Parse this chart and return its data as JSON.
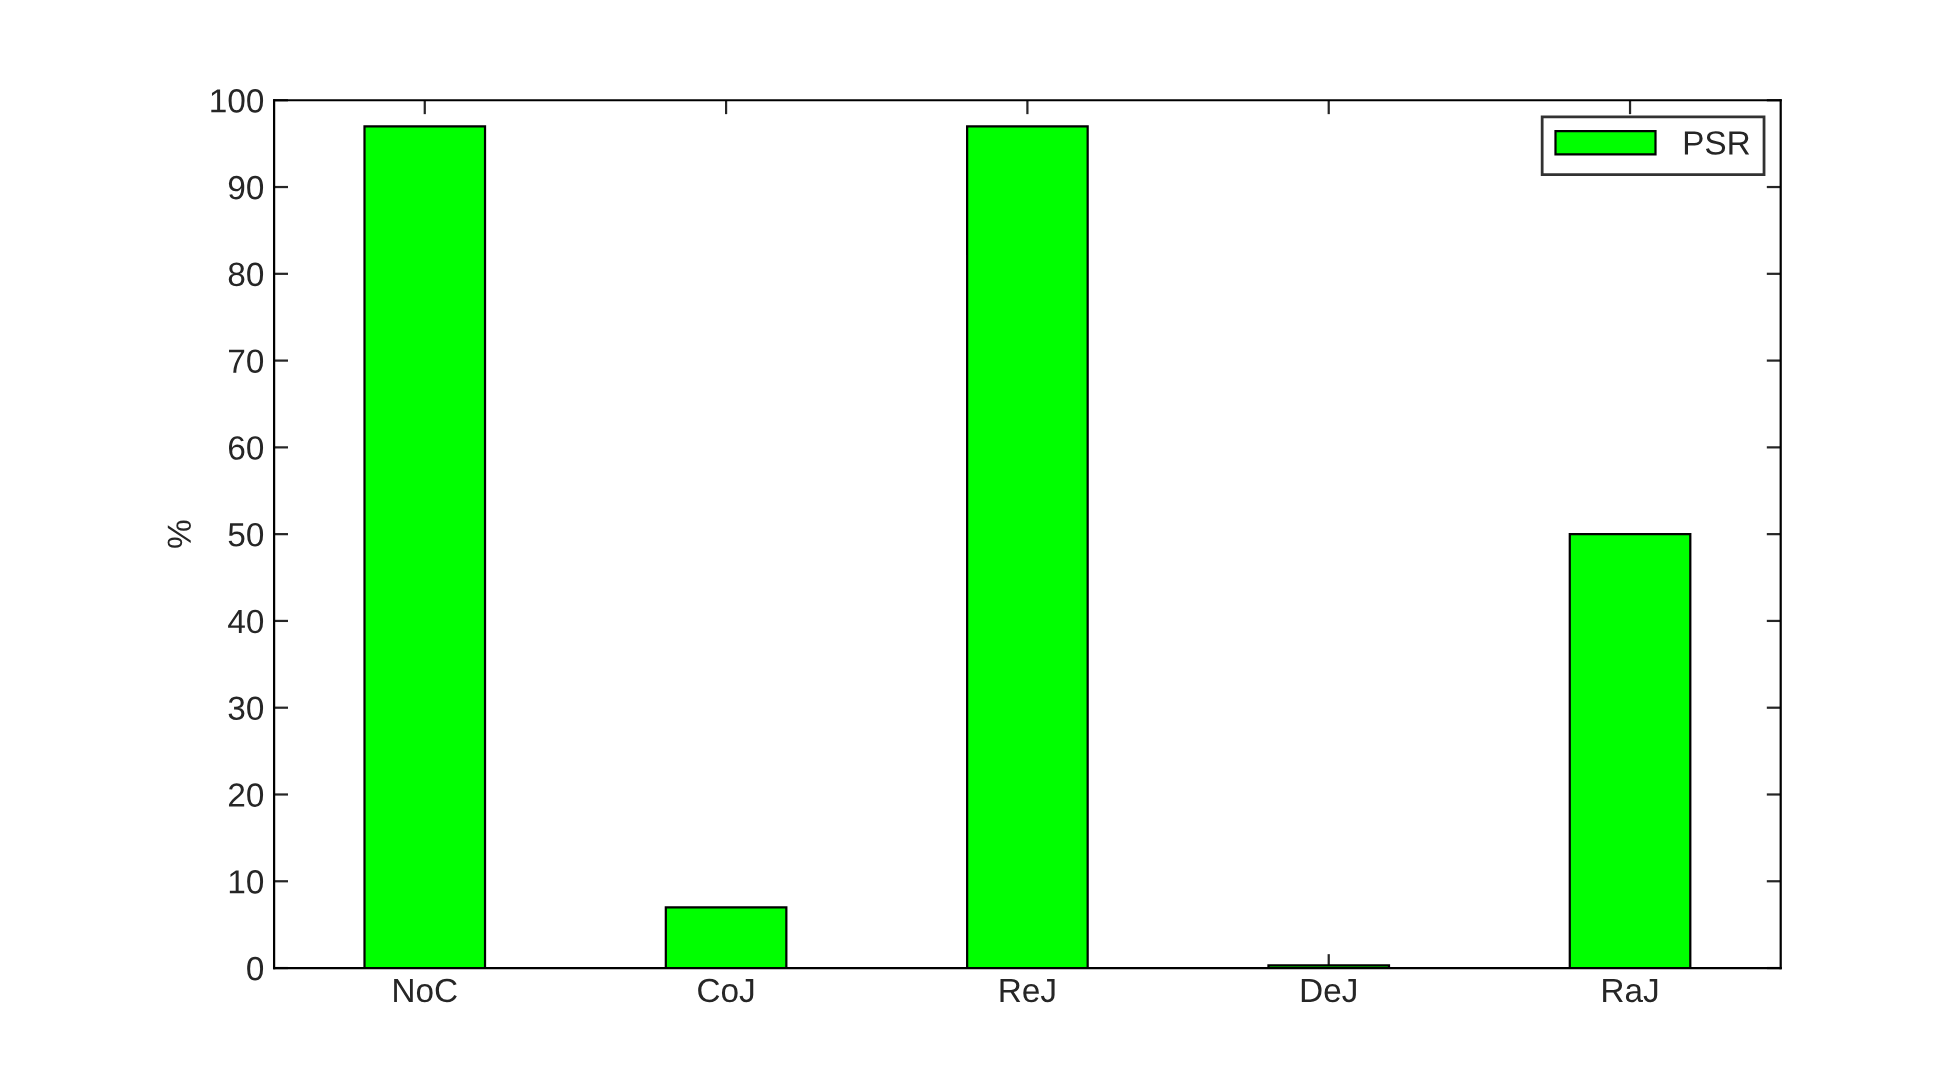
{
  "chart_data": {
    "type": "bar",
    "ylabel": "%",
    "categories": [
      "NoC",
      "CoJ",
      "ReJ",
      "DeJ",
      "RaJ"
    ],
    "series": [
      {
        "name": "PSR",
        "color": "#00ff00",
        "values": [
          97,
          7,
          97,
          0.3,
          50
        ]
      }
    ],
    "ylim": [
      0,
      100
    ],
    "yticks": [
      0,
      10,
      20,
      30,
      40,
      50,
      60,
      70,
      80,
      90,
      100
    ],
    "grid": false,
    "legend": "top right"
  }
}
